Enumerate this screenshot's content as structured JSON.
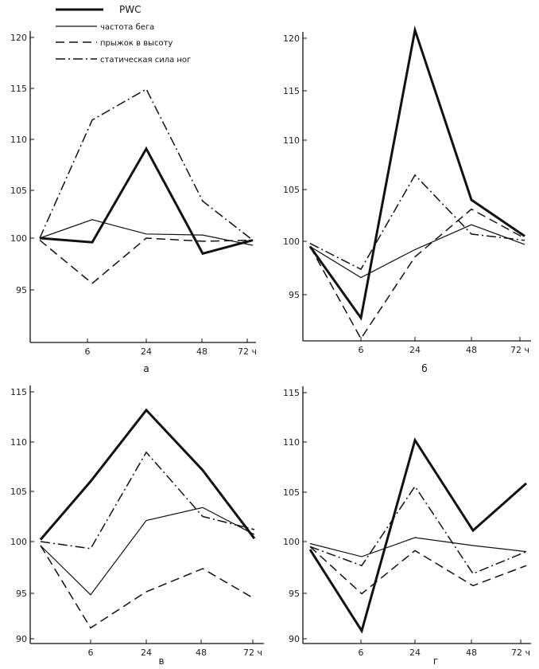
{
  "legend": [
    {
      "name": "PWC",
      "style": "thick"
    },
    {
      "name": "частота бега",
      "style": "thin"
    },
    {
      "name": "прыжок в высоту",
      "style": "dashed"
    },
    {
      "name": "статическая сила ног",
      "style": "dashdot"
    }
  ],
  "chart_data": [
    {
      "type": "line",
      "panel_label": "а",
      "x": [
        "0",
        "6",
        "24",
        "48",
        "72"
      ],
      "x_tick_labels": [
        "6",
        "24",
        "48",
        "72 ч"
      ],
      "y_ticks": [
        "120",
        "115",
        "110",
        "105",
        "100",
        "95"
      ],
      "ylim": [
        90,
        120
      ],
      "series": [
        {
          "name": "PWC",
          "values": [
            100,
            99.6,
            108.7,
            98.5,
            99.8
          ]
        },
        {
          "name": "частота бега",
          "values": [
            100,
            101.8,
            100.4,
            100.3,
            99.3
          ]
        },
        {
          "name": "прыжок в высоту",
          "values": [
            99.8,
            95.6,
            100,
            99.7,
            99.8
          ]
        },
        {
          "name": "статическая сила ног",
          "values": [
            100,
            111.5,
            114.5,
            103.6,
            99.8
          ]
        }
      ]
    },
    {
      "type": "line",
      "panel_label": "б",
      "x": [
        "0",
        "6",
        "24",
        "48",
        "72"
      ],
      "x_tick_labels": [
        "6",
        "24",
        "48",
        "72 ч"
      ],
      "y_ticks": [
        "120",
        "115",
        "110",
        "105",
        "100",
        "95"
      ],
      "ylim": [
        90,
        120
      ],
      "series": [
        {
          "name": "PWC",
          "values": [
            99.5,
            92.6,
            120.4,
            104,
            100.5
          ]
        },
        {
          "name": "частота бега",
          "values": [
            99.5,
            96.5,
            99.2,
            101.6,
            99.7
          ]
        },
        {
          "name": "прыжок в высоту",
          "values": [
            99.5,
            90.6,
            98.5,
            103.1,
            100.3
          ]
        },
        {
          "name": "статическая сила ног",
          "values": [
            99.8,
            97.3,
            106.4,
            100.7,
            100.1
          ]
        }
      ]
    },
    {
      "type": "line",
      "panel_label": "в",
      "x": [
        "0",
        "6",
        "24",
        "48",
        "72"
      ],
      "x_tick_labels": [
        "6",
        "24",
        "48",
        "72 ч"
      ],
      "y_ticks": [
        "115",
        "110",
        "105",
        "100",
        "95",
        "90"
      ],
      "ylim": [
        90,
        115
      ],
      "series": [
        {
          "name": "PWC",
          "values": [
            100.2,
            106,
            113.1,
            107.1,
            100.3
          ]
        },
        {
          "name": "частота бега",
          "values": [
            99.6,
            94.7,
            102.1,
            103.4,
            100.7
          ]
        },
        {
          "name": "прыжок в высоту",
          "values": [
            99.6,
            91.4,
            95,
            97.3,
            94.3
          ]
        },
        {
          "name": "статическая сила ног",
          "values": [
            100,
            99.3,
            108.9,
            102.5,
            101.2
          ]
        }
      ]
    },
    {
      "type": "line",
      "panel_label": "г",
      "x": [
        "0",
        "6",
        "24",
        "48",
        "72"
      ],
      "x_tick_labels": [
        "6",
        "24",
        "48",
        "72 ч"
      ],
      "y_ticks": [
        "115",
        "110",
        "105",
        "100",
        "95",
        "90"
      ],
      "ylim": [
        90,
        115
      ],
      "series": [
        {
          "name": "PWC",
          "values": [
            99.2,
            91.1,
            110.1,
            101.1,
            105.8
          ]
        },
        {
          "name": "частота бега",
          "values": [
            99.8,
            98.5,
            100.4,
            99.6,
            99
          ]
        },
        {
          "name": "прыжок в высоту",
          "values": [
            99.5,
            94.8,
            99.1,
            95.6,
            97.6
          ]
        },
        {
          "name": "статическая сила ног",
          "values": [
            99.5,
            97.6,
            105.5,
            96.8,
            99
          ]
        }
      ]
    }
  ]
}
